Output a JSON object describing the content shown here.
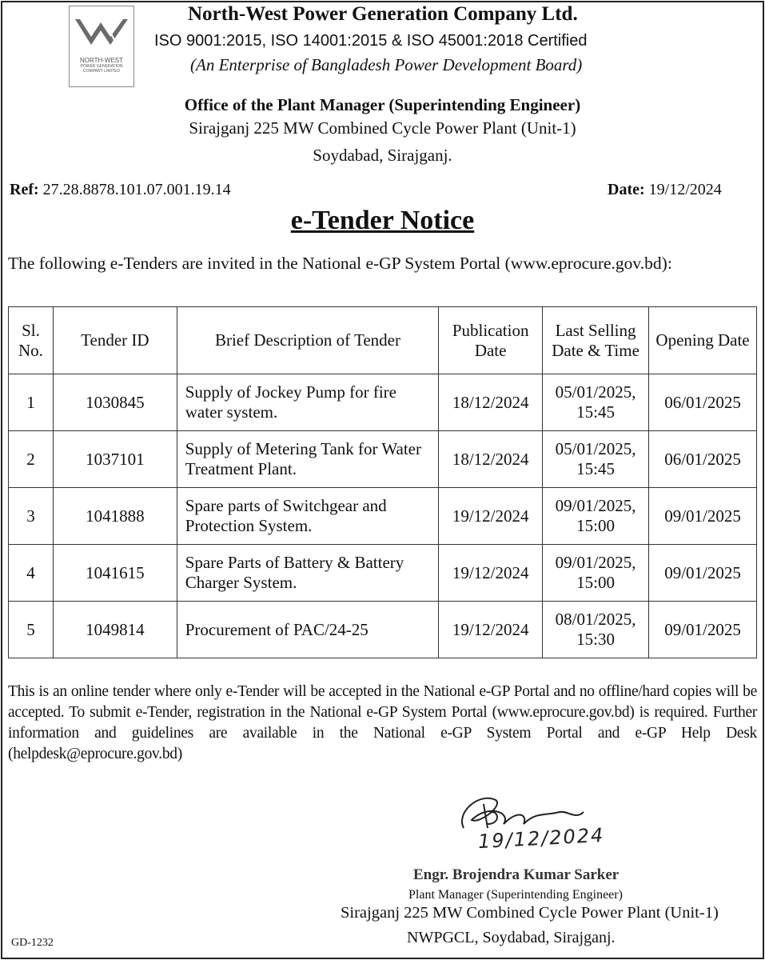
{
  "header": {
    "logo_text": [
      "NORTH-WEST",
      "POWER GENERATION",
      "COMPANY LIMITED"
    ],
    "company": "North-West Power Generation Company Ltd.",
    "certification": "ISO 9001:2015, ISO 14001:2015 & ISO 45001:2018 Certified",
    "enterprise": "(An Enterprise of Bangladesh Power Development Board)",
    "office": "Office of the Plant Manager (Superintending Engineer)",
    "plant": "Sirajganj 225 MW Combined Cycle Power Plant (Unit-1)",
    "location": "Soydabad, Sirajganj."
  },
  "ref": {
    "label": "Ref:",
    "value": "27.28.8878.101.07.001.19.14"
  },
  "date": {
    "label": "Date:",
    "value": "19/12/2024"
  },
  "title": "e-Tender Notice",
  "intro": "The following e-Tenders are invited in the National e-GP System Portal (www.eprocure.gov.bd):",
  "table": {
    "headers": [
      "Sl. No.",
      "Tender ID",
      "Brief Description of Tender",
      "Publication Date",
      "Last Selling Date & Time",
      "Opening Date"
    ],
    "rows": [
      {
        "sl": "1",
        "id": "1030845",
        "desc": "Supply of Jockey Pump for fire water system.",
        "pub": "18/12/2024",
        "last": "05/01/2025, 15:45",
        "open": "06/01/2025"
      },
      {
        "sl": "2",
        "id": "1037101",
        "desc": "Supply of Metering Tank for Water Treatment Plant.",
        "pub": "18/12/2024",
        "last": "05/01/2025, 15:45",
        "open": "06/01/2025"
      },
      {
        "sl": "3",
        "id": "1041888",
        "desc": "Spare parts of Switchgear and Protection System.",
        "pub": "19/12/2024",
        "last": "09/01/2025, 15:00",
        "open": "09/01/2025"
      },
      {
        "sl": "4",
        "id": "1041615",
        "desc": "Spare Parts of Battery & Battery Charger System.",
        "pub": "19/12/2024",
        "last": "09/01/2025, 15:00",
        "open": "09/01/2025"
      },
      {
        "sl": "5",
        "id": "1049814",
        "desc": "Procurement of PAC/24-25",
        "pub": "19/12/2024",
        "last": "08/01/2025, 15:30",
        "open": "09/01/2025"
      }
    ]
  },
  "notice": {
    "p1": "This is an online tender where only e-Tender will be accepted in the National e-GP Portal and no offline/hard copies will be accepted. To submit e-Tender, registration in the National e-GP System Portal (",
    "link1": "www.eprocure.gov.bd",
    "p2": ") is required. Further information and guidelines are available in the National e-GP System Portal and e-GP Help Desk (",
    "link2": "helpdesk@eprocure.gov.bd",
    "p3": ")"
  },
  "signature": {
    "handwritten_date": "19/12/2024",
    "name": "Engr. Brojendra Kumar Sarker",
    "designation": "Plant Manager (Superintending Engineer)",
    "plant": "Sirajganj 225 MW Combined Cycle Power Plant (Unit-1)",
    "address": "NWPGCL, Soydabad, Sirajganj."
  },
  "footer_code": "GD-1232"
}
